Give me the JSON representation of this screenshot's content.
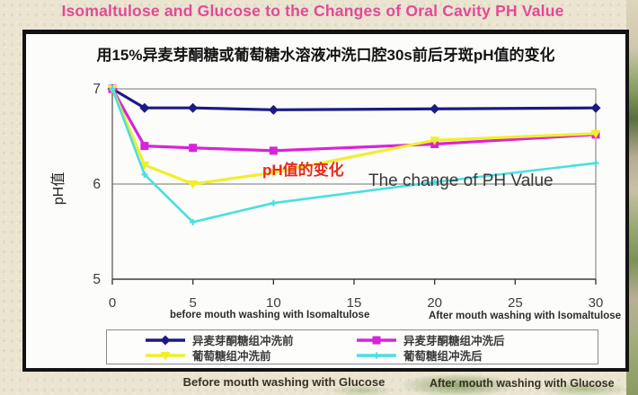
{
  "slide": {
    "title": "Isomaltulose and Glucose to the Changes of Oral Cavity PH Value",
    "title_color": "#e24a96",
    "captions": {
      "before_isomaltulose": "before mouth washing with Isomaltulose",
      "after_isomaltulose": "After mouth washing with Isomaltulose",
      "before_glucose": "Before mouth washing with Glucose",
      "after_glucose": "After mouth washing with Glucose"
    }
  },
  "chart_data": {
    "type": "line",
    "title": "用15%异麦芽酮糖或葡萄糖水溶液冲洗口腔30s前后牙斑pH值的变化",
    "ylabel": "pH值",
    "xlabel": "",
    "xlim": [
      0,
      30
    ],
    "ylim": [
      5,
      7
    ],
    "x_ticks": [
      0,
      5,
      10,
      15,
      20,
      25,
      30
    ],
    "y_ticks": [
      5,
      6,
      7
    ],
    "grid": true,
    "legend_position": "bottom",
    "annotations": [
      {
        "text": "pH值的变化",
        "color": "#e52a1f"
      },
      {
        "text": "The change of PH Value",
        "color": "#3a3a3a"
      }
    ],
    "x": [
      0,
      2,
      5,
      10,
      20,
      30
    ],
    "series": [
      {
        "name": "异麦芽酮糖组冲洗前",
        "color": "#1b1b86",
        "marker": "diamond",
        "values": [
          7.0,
          6.8,
          6.8,
          6.78,
          6.79,
          6.8
        ]
      },
      {
        "name": "异麦芽酮糖组冲洗后",
        "color": "#d824d8",
        "marker": "square",
        "values": [
          7.0,
          6.4,
          6.38,
          6.35,
          6.42,
          6.52
        ]
      },
      {
        "name": "葡萄糖组冲洗前",
        "color": "#f2ee2a",
        "marker": "triangle",
        "values": [
          7.0,
          6.2,
          6.0,
          6.12,
          6.46,
          6.53
        ]
      },
      {
        "name": "葡萄糖组冲洗后",
        "color": "#4adfdf",
        "marker": "plus",
        "values": [
          7.0,
          6.1,
          5.6,
          5.8,
          6.02,
          6.22
        ]
      }
    ]
  }
}
